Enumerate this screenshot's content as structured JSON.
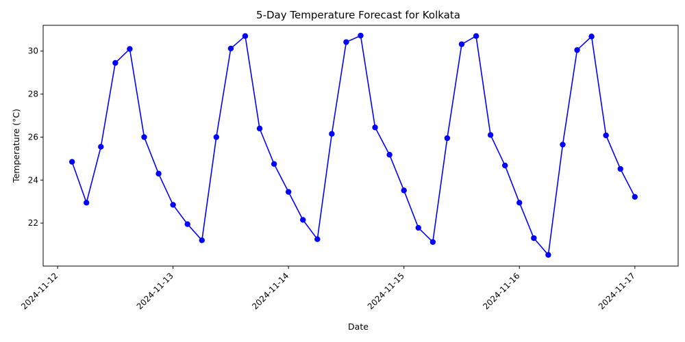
{
  "chart_data": {
    "type": "line",
    "title": "5-Day Temperature Forecast for Kolkata",
    "xlabel": "Date",
    "ylabel": "Temperature (°C)",
    "x_ticks": [
      "2024-11-12",
      "2024-11-13",
      "2024-11-14",
      "2024-11-15",
      "2024-11-16",
      "2024-11-17"
    ],
    "y_ticks": [
      22,
      24,
      26,
      28,
      30
    ],
    "ylim": [
      20.0,
      31.2
    ],
    "xlim": [
      "2024-11-11 21:00",
      "2024-11-17 09:00"
    ],
    "grid": false,
    "color": "#0000ff",
    "marker": "circle",
    "series": [
      {
        "x": [
          "2024-11-12 03:00",
          "2024-11-12 06:00",
          "2024-11-12 09:00",
          "2024-11-12 12:00",
          "2024-11-12 15:00",
          "2024-11-12 18:00",
          "2024-11-12 21:00",
          "2024-11-13 00:00",
          "2024-11-13 03:00",
          "2024-11-13 06:00",
          "2024-11-13 09:00",
          "2024-11-13 12:00",
          "2024-11-13 15:00",
          "2024-11-13 18:00",
          "2024-11-13 21:00",
          "2024-11-14 00:00",
          "2024-11-14 03:00",
          "2024-11-14 06:00",
          "2024-11-14 09:00",
          "2024-11-14 12:00",
          "2024-11-14 15:00",
          "2024-11-14 18:00",
          "2024-11-14 21:00",
          "2024-11-15 00:00",
          "2024-11-15 03:00",
          "2024-11-15 06:00",
          "2024-11-15 09:00",
          "2024-11-15 12:00",
          "2024-11-15 15:00",
          "2024-11-15 18:00",
          "2024-11-15 21:00",
          "2024-11-16 00:00",
          "2024-11-16 03:00",
          "2024-11-16 06:00",
          "2024-11-16 09:00",
          "2024-11-16 12:00",
          "2024-11-16 15:00",
          "2024-11-16 18:00",
          "2024-11-16 21:00",
          "2024-11-17 00:00"
        ],
        "y": [
          24.85,
          22.95,
          25.55,
          29.45,
          30.1,
          26.0,
          24.3,
          22.85,
          21.95,
          21.2,
          26.0,
          30.12,
          30.7,
          26.4,
          24.75,
          23.45,
          22.15,
          21.25,
          26.15,
          30.42,
          30.72,
          26.45,
          25.18,
          23.52,
          21.78,
          21.12,
          25.95,
          30.32,
          30.7,
          26.1,
          24.68,
          22.95,
          21.3,
          20.52,
          25.65,
          30.05,
          30.68,
          26.08,
          24.52,
          23.22
        ]
      }
    ]
  }
}
